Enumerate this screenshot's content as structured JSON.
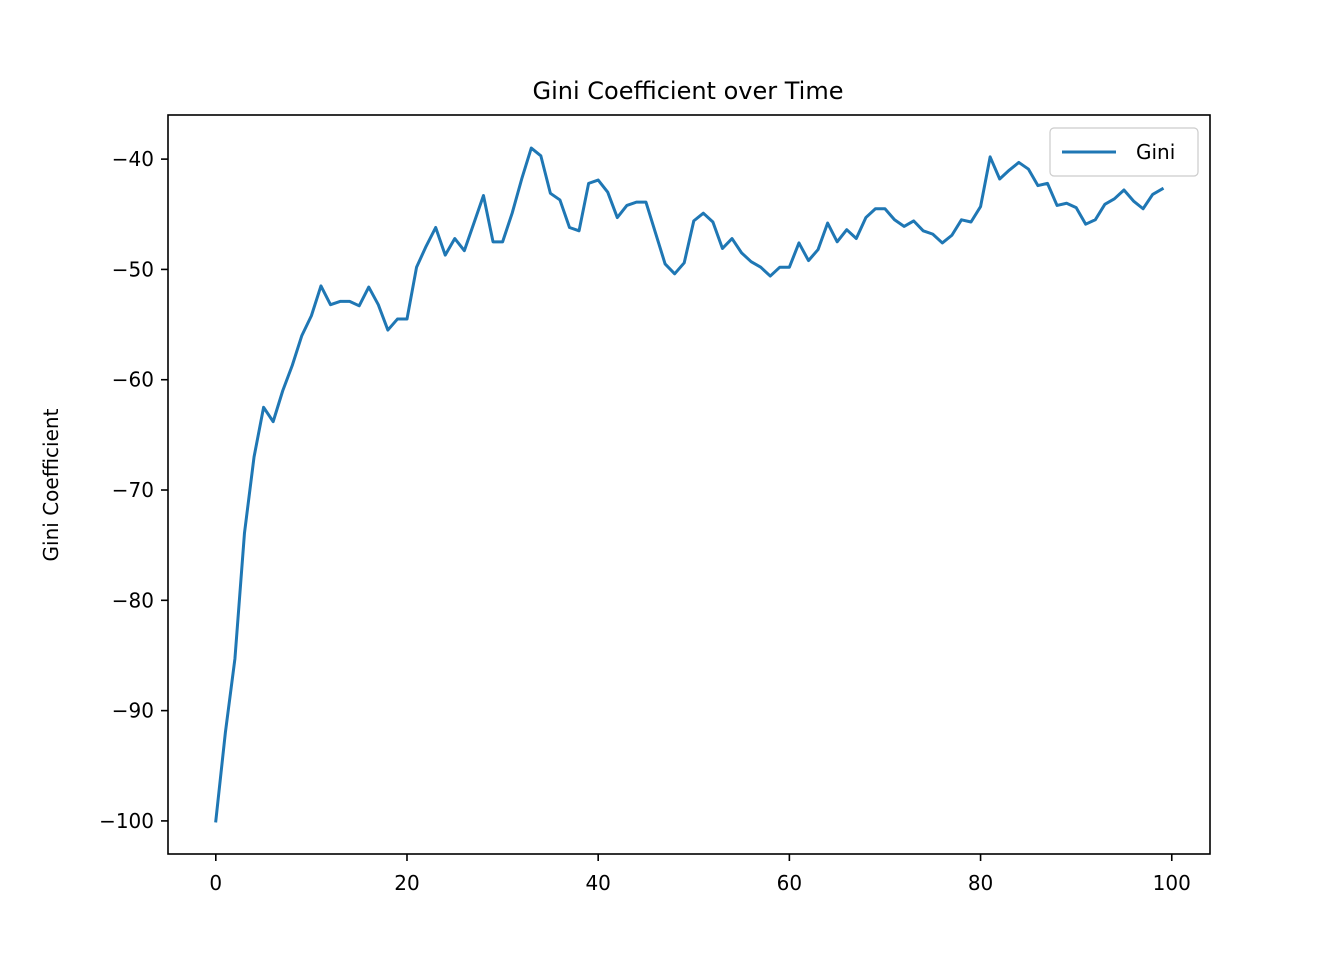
{
  "chart_data": {
    "type": "line",
    "title": "Gini Coefficient over Time",
    "xlabel": "",
    "ylabel": "Gini Coefficient",
    "xlim": [
      -5,
      104
    ],
    "ylim": [
      -103,
      -36
    ],
    "xticks": [
      0,
      20,
      40,
      60,
      80,
      100
    ],
    "yticks": [
      -100,
      -90,
      -80,
      -70,
      -60,
      -50,
      -40
    ],
    "xtick_labels": [
      "0",
      "20",
      "40",
      "60",
      "80",
      "100"
    ],
    "ytick_labels": [
      "−100",
      "−90",
      "−80",
      "−70",
      "−60",
      "−50",
      "−40"
    ],
    "legend": {
      "position": "top-right"
    },
    "grid": false,
    "colors": {
      "series": "#1f77b4"
    },
    "series": [
      {
        "name": "Gini",
        "x": [
          0,
          1,
          2,
          3,
          4,
          5,
          6,
          7,
          8,
          9,
          10,
          11,
          12,
          13,
          14,
          15,
          16,
          17,
          18,
          19,
          20,
          21,
          22,
          23,
          24,
          25,
          26,
          27,
          28,
          29,
          30,
          31,
          32,
          33,
          34,
          35,
          36,
          37,
          38,
          39,
          40,
          41,
          42,
          43,
          44,
          45,
          46,
          47,
          48,
          49,
          50,
          51,
          52,
          53,
          54,
          55,
          56,
          57,
          58,
          59,
          60,
          61,
          62,
          63,
          64,
          65,
          66,
          67,
          68,
          69,
          70,
          71,
          72,
          73,
          74,
          75,
          76,
          77,
          78,
          79,
          80,
          81,
          82,
          83,
          84,
          85,
          86,
          87,
          88,
          89,
          90,
          91,
          92,
          93,
          94,
          95,
          96,
          97,
          98,
          99
        ],
        "values": [
          -100,
          -92,
          -85.3,
          -73.9,
          -67,
          -62.5,
          -63.8,
          -61,
          -58.7,
          -56,
          -54.2,
          -51.5,
          -53.2,
          -52.9,
          -52.9,
          -53.3,
          -51.6,
          -53.2,
          -55.5,
          -54.5,
          -54.5,
          -49.8,
          -47.9,
          -46.2,
          -48.7,
          -47.2,
          -48.3,
          -45.8,
          -43.3,
          -47.5,
          -47.5,
          -44.9,
          -41.8,
          -39,
          -39.7,
          -43.1,
          -43.7,
          -46.2,
          -46.5,
          -42.2,
          -41.9,
          -43,
          -45.3,
          -44.2,
          -43.9,
          -43.9,
          -46.7,
          -49.5,
          -50.4,
          -49.4,
          -45.6,
          -44.9,
          -45.7,
          -48.1,
          -47.2,
          -48.5,
          -49.3,
          -49.8,
          -50.6,
          -49.8,
          -49.8,
          -47.6,
          -49.2,
          -48.2,
          -45.8,
          -47.5,
          -46.4,
          -47.2,
          -45.3,
          -44.5,
          -44.5,
          -45.5,
          -46.1,
          -45.6,
          -46.5,
          -46.8,
          -47.6,
          -46.9,
          -45.5,
          -45.7,
          -44.3,
          -39.8,
          -41.8,
          -41,
          -40.3,
          -40.9,
          -42.4,
          -42.2,
          -44.2,
          -44,
          -44.4,
          -45.9,
          -45.5,
          -44.1,
          -43.6,
          -42.8,
          -43.8,
          -44.5,
          -43.2,
          -42.7
        ]
      }
    ]
  }
}
